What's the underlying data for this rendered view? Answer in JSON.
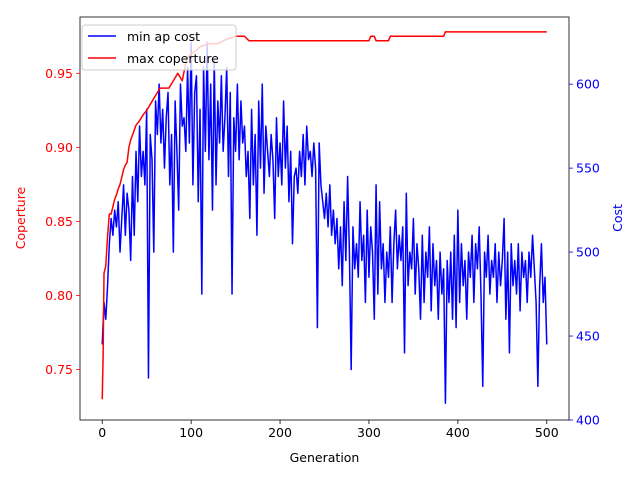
{
  "chart_data": {
    "type": "line",
    "xlabel": "Generation",
    "ylabel_left": "Coperture",
    "ylabel_right": "Cost",
    "xlim": [
      -25,
      525
    ],
    "ylim_left": [
      0.716,
      0.988
    ],
    "ylim_right": [
      400,
      640
    ],
    "x_ticks": [
      0,
      100,
      200,
      300,
      400,
      500
    ],
    "y_left_ticks": [
      0.75,
      0.8,
      0.85,
      0.9,
      0.95
    ],
    "y_left_tick_labels": [
      "0.75",
      "0.80",
      "0.85",
      "0.90",
      "0.95"
    ],
    "y_right_ticks": [
      400,
      450,
      500,
      550,
      600
    ],
    "legend_placement": "top-left",
    "grid": false,
    "colors": {
      "left_axis": "#ff0000",
      "right_axis": "#0000ff"
    },
    "series": [
      {
        "name": "min ap cost",
        "color": "#0000ff",
        "axis": "right",
        "points": [
          [
            0,
            445
          ],
          [
            2,
            470
          ],
          [
            4,
            460
          ],
          [
            6,
            480
          ],
          [
            8,
            505
          ],
          [
            10,
            520
          ],
          [
            12,
            510
          ],
          [
            14,
            525
          ],
          [
            16,
            515
          ],
          [
            18,
            530
          ],
          [
            20,
            500
          ],
          [
            22,
            520
          ],
          [
            24,
            540
          ],
          [
            26,
            510
          ],
          [
            28,
            535
          ],
          [
            30,
            525
          ],
          [
            32,
            495
          ],
          [
            34,
            545
          ],
          [
            36,
            510
          ],
          [
            38,
            560
          ],
          [
            40,
            530
          ],
          [
            42,
            575
          ],
          [
            44,
            545
          ],
          [
            46,
            560
          ],
          [
            48,
            540
          ],
          [
            50,
            585
          ],
          [
            52,
            425
          ],
          [
            54,
            570
          ],
          [
            56,
            555
          ],
          [
            58,
            500
          ],
          [
            60,
            590
          ],
          [
            62,
            570
          ],
          [
            64,
            600
          ],
          [
            66,
            565
          ],
          [
            68,
            585
          ],
          [
            70,
            550
          ],
          [
            72,
            580
          ],
          [
            74,
            595
          ],
          [
            76,
            540
          ],
          [
            78,
            570
          ],
          [
            80,
            500
          ],
          [
            82,
            590
          ],
          [
            84,
            560
          ],
          [
            86,
            525
          ],
          [
            88,
            600
          ],
          [
            90,
            575
          ],
          [
            92,
            580
          ],
          [
            94,
            560
          ],
          [
            96,
            610
          ],
          [
            98,
            565
          ],
          [
            100,
            625
          ],
          [
            102,
            540
          ],
          [
            104,
            595
          ],
          [
            106,
            605
          ],
          [
            108,
            530
          ],
          [
            110,
            585
          ],
          [
            112,
            475
          ],
          [
            114,
            610
          ],
          [
            116,
            560
          ],
          [
            118,
            625
          ],
          [
            120,
            555
          ],
          [
            122,
            600
          ],
          [
            124,
            525
          ],
          [
            126,
            615
          ],
          [
            128,
            540
          ],
          [
            130,
            590
          ],
          [
            132,
            565
          ],
          [
            134,
            605
          ],
          [
            136,
            560
          ],
          [
            138,
            580
          ],
          [
            140,
            610
          ],
          [
            142,
            545
          ],
          [
            144,
            595
          ],
          [
            146,
            475
          ],
          [
            148,
            580
          ],
          [
            150,
            560
          ],
          [
            152,
            600
          ],
          [
            154,
            555
          ],
          [
            156,
            590
          ],
          [
            158,
            565
          ],
          [
            160,
            575
          ],
          [
            162,
            545
          ],
          [
            164,
            560
          ],
          [
            166,
            520
          ],
          [
            168,
            585
          ],
          [
            170,
            540
          ],
          [
            172,
            570
          ],
          [
            174,
            510
          ],
          [
            176,
            590
          ],
          [
            178,
            550
          ],
          [
            180,
            600
          ],
          [
            182,
            535
          ],
          [
            184,
            575
          ],
          [
            186,
            560
          ],
          [
            188,
            545
          ],
          [
            190,
            570
          ],
          [
            192,
            555
          ],
          [
            194,
            520
          ],
          [
            196,
            580
          ],
          [
            198,
            545
          ],
          [
            200,
            565
          ],
          [
            202,
            540
          ],
          [
            204,
            590
          ],
          [
            206,
            550
          ],
          [
            208,
            575
          ],
          [
            210,
            530
          ],
          [
            212,
            560
          ],
          [
            214,
            505
          ],
          [
            216,
            545
          ],
          [
            218,
            550
          ],
          [
            220,
            535
          ],
          [
            222,
            560
          ],
          [
            224,
            545
          ],
          [
            226,
            570
          ],
          [
            228,
            540
          ],
          [
            230,
            575
          ],
          [
            232,
            555
          ],
          [
            234,
            560
          ],
          [
            236,
            545
          ],
          [
            238,
            565
          ],
          [
            240,
            550
          ],
          [
            242,
            455
          ],
          [
            244,
            565
          ],
          [
            246,
            540
          ],
          [
            248,
            530
          ],
          [
            250,
            520
          ],
          [
            252,
            535
          ],
          [
            254,
            515
          ],
          [
            256,
            540
          ],
          [
            258,
            510
          ],
          [
            260,
            525
          ],
          [
            262,
            505
          ],
          [
            264,
            520
          ],
          [
            266,
            490
          ],
          [
            268,
            515
          ],
          [
            270,
            480
          ],
          [
            272,
            530
          ],
          [
            274,
            495
          ],
          [
            276,
            545
          ],
          [
            278,
            500
          ],
          [
            280,
            430
          ],
          [
            282,
            515
          ],
          [
            284,
            490
          ],
          [
            286,
            505
          ],
          [
            288,
            485
          ],
          [
            290,
            530
          ],
          [
            292,
            495
          ],
          [
            294,
            510
          ],
          [
            296,
            470
          ],
          [
            298,
            525
          ],
          [
            300,
            485
          ],
          [
            302,
            515
          ],
          [
            304,
            500
          ],
          [
            306,
            460
          ],
          [
            308,
            540
          ],
          [
            310,
            475
          ],
          [
            312,
            530
          ],
          [
            314,
            490
          ],
          [
            316,
            505
          ],
          [
            318,
            470
          ],
          [
            320,
            500
          ],
          [
            322,
            485
          ],
          [
            324,
            515
          ],
          [
            326,
            470
          ],
          [
            328,
            505
          ],
          [
            330,
            525
          ],
          [
            332,
            490
          ],
          [
            334,
            510
          ],
          [
            336,
            495
          ],
          [
            338,
            515
          ],
          [
            340,
            440
          ],
          [
            342,
            535
          ],
          [
            344,
            480
          ],
          [
            346,
            500
          ],
          [
            348,
            490
          ],
          [
            350,
            520
          ],
          [
            352,
            475
          ],
          [
            354,
            505
          ],
          [
            356,
            490
          ],
          [
            358,
            460
          ],
          [
            360,
            510
          ],
          [
            362,
            470
          ],
          [
            364,
            500
          ],
          [
            366,
            485
          ],
          [
            368,
            515
          ],
          [
            370,
            465
          ],
          [
            372,
            505
          ],
          [
            374,
            480
          ],
          [
            376,
            495
          ],
          [
            378,
            460
          ],
          [
            380,
            500
          ],
          [
            382,
            475
          ],
          [
            384,
            490
          ],
          [
            386,
            410
          ],
          [
            388,
            495
          ],
          [
            390,
            470
          ],
          [
            392,
            500
          ],
          [
            394,
            460
          ],
          [
            396,
            510
          ],
          [
            398,
            455
          ],
          [
            400,
            525
          ],
          [
            402,
            470
          ],
          [
            404,
            505
          ],
          [
            406,
            480
          ],
          [
            408,
            495
          ],
          [
            410,
            460
          ],
          [
            412,
            500
          ],
          [
            414,
            485
          ],
          [
            416,
            510
          ],
          [
            418,
            470
          ],
          [
            420,
            505
          ],
          [
            422,
            490
          ],
          [
            424,
            515
          ],
          [
            426,
            475
          ],
          [
            428,
            420
          ],
          [
            430,
            500
          ],
          [
            432,
            485
          ],
          [
            434,
            510
          ],
          [
            436,
            475
          ],
          [
            438,
            495
          ],
          [
            440,
            485
          ],
          [
            442,
            505
          ],
          [
            444,
            470
          ],
          [
            446,
            500
          ],
          [
            448,
            480
          ],
          [
            450,
            495
          ],
          [
            452,
            520
          ],
          [
            454,
            460
          ],
          [
            456,
            500
          ],
          [
            458,
            440
          ],
          [
            460,
            505
          ],
          [
            462,
            480
          ],
          [
            464,
            495
          ],
          [
            466,
            475
          ],
          [
            468,
            505
          ],
          [
            470,
            465
          ],
          [
            472,
            500
          ],
          [
            474,
            485
          ],
          [
            476,
            495
          ],
          [
            478,
            470
          ],
          [
            480,
            500
          ],
          [
            482,
            485
          ],
          [
            484,
            510
          ],
          [
            486,
            490
          ],
          [
            488,
            470
          ],
          [
            490,
            420
          ],
          [
            492,
            480
          ],
          [
            494,
            505
          ],
          [
            496,
            470
          ],
          [
            498,
            485
          ],
          [
            500,
            445
          ]
        ]
      },
      {
        "name": "max coperture",
        "color": "#ff0000",
        "axis": "left",
        "points": [
          [
            0,
            0.73
          ],
          [
            1,
            0.76
          ],
          [
            2,
            0.815
          ],
          [
            4,
            0.82
          ],
          [
            6,
            0.84
          ],
          [
            8,
            0.855
          ],
          [
            10,
            0.855
          ],
          [
            12,
            0.86
          ],
          [
            14,
            0.865
          ],
          [
            16,
            0.868
          ],
          [
            18,
            0.872
          ],
          [
            20,
            0.875
          ],
          [
            22,
            0.88
          ],
          [
            24,
            0.885
          ],
          [
            26,
            0.888
          ],
          [
            28,
            0.89
          ],
          [
            30,
            0.9
          ],
          [
            32,
            0.905
          ],
          [
            35,
            0.91
          ],
          [
            38,
            0.915
          ],
          [
            42,
            0.918
          ],
          [
            46,
            0.922
          ],
          [
            50,
            0.925
          ],
          [
            55,
            0.93
          ],
          [
            60,
            0.935
          ],
          [
            65,
            0.94
          ],
          [
            70,
            0.94
          ],
          [
            75,
            0.94
          ],
          [
            80,
            0.945
          ],
          [
            85,
            0.95
          ],
          [
            90,
            0.945
          ],
          [
            95,
            0.96
          ],
          [
            100,
            0.963
          ],
          [
            105,
            0.965
          ],
          [
            110,
            0.968
          ],
          [
            120,
            0.97
          ],
          [
            130,
            0.97
          ],
          [
            140,
            0.973
          ],
          [
            150,
            0.975
          ],
          [
            160,
            0.975
          ],
          [
            165,
            0.972
          ],
          [
            200,
            0.972
          ],
          [
            250,
            0.972
          ],
          [
            300,
            0.972
          ],
          [
            302,
            0.975
          ],
          [
            306,
            0.975
          ],
          [
            308,
            0.972
          ],
          [
            322,
            0.972
          ],
          [
            324,
            0.975
          ],
          [
            350,
            0.975
          ],
          [
            384,
            0.975
          ],
          [
            386,
            0.978
          ],
          [
            420,
            0.978
          ],
          [
            460,
            0.978
          ],
          [
            500,
            0.978
          ]
        ]
      }
    ]
  }
}
